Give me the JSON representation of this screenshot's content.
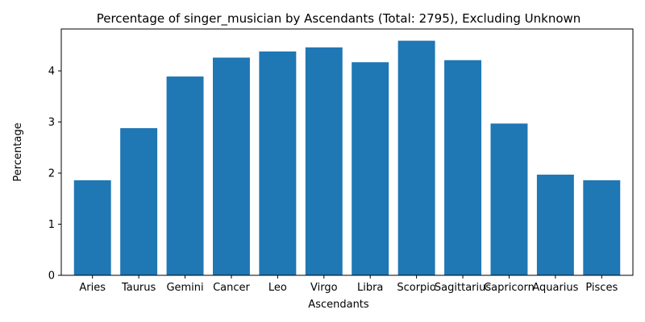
{
  "chart_data": {
    "type": "bar",
    "title": "Percentage of singer_musician by Ascendants (Total: 2795), Excluding Unknown",
    "xlabel": "Ascendants",
    "ylabel": "Percentage",
    "categories": [
      "Aries",
      "Taurus",
      "Gemini",
      "Cancer",
      "Leo",
      "Virgo",
      "Libra",
      "Scorpio",
      "Sagittarius",
      "Capricorn",
      "Aquarius",
      "Pisces"
    ],
    "values": [
      1.86,
      2.88,
      3.89,
      4.26,
      4.38,
      4.46,
      4.17,
      4.59,
      4.21,
      2.97,
      1.97,
      1.86
    ],
    "ylim": [
      0,
      4.82
    ],
    "yticks": [
      0,
      1,
      2,
      3,
      4
    ],
    "bar_color": "#1f77b4",
    "grid": false,
    "legend": "none"
  }
}
